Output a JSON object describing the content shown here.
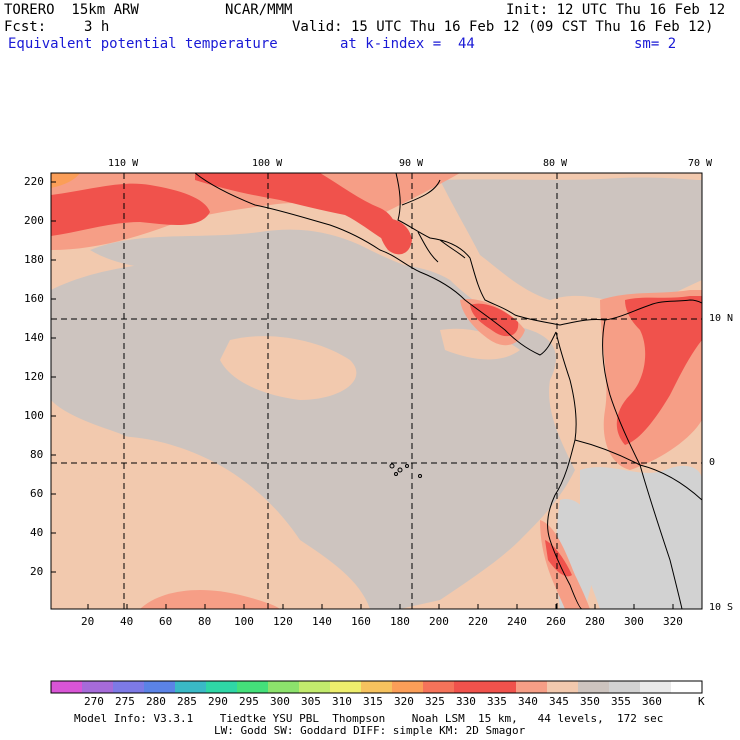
{
  "header": {
    "model": "TORERO  15km ARW",
    "center": "NCAR/MMM",
    "init": "Init: 12 UTC Thu 16 Feb 12",
    "fcst_label": "Fcst:",
    "fcst_value": "3 h",
    "valid": "Valid: 15 UTC Thu 16 Feb 12 (09 CST Thu 16 Feb 12)",
    "field": "Equivalent potential temperature",
    "level": "at k-index =  44",
    "smoothing": "sm= 2"
  },
  "map": {
    "x_ticks": [
      "20",
      "40",
      "60",
      "80",
      "100",
      "120",
      "140",
      "160",
      "180",
      "200",
      "220",
      "240",
      "260",
      "280",
      "300",
      "320"
    ],
    "y_ticks": [
      "20",
      "40",
      "60",
      "80",
      "100",
      "120",
      "140",
      "160",
      "180",
      "200",
      "220"
    ],
    "lon_labels": [
      "110 W",
      "100 W",
      "90 W",
      "80 W",
      "70 W"
    ],
    "lat_labels": [
      "10 N",
      "0",
      "10 S"
    ],
    "colors": {
      "ocean_base": "#f2c9ae",
      "land_gray": "#cdc4bf",
      "warm": "#f69e86",
      "hot": "#f0524c",
      "very_hot": "#fb9e58",
      "gray_light": "#d2d2d2"
    }
  },
  "colorbar": {
    "labels": [
      "270",
      "275",
      "280",
      "285",
      "290",
      "295",
      "300",
      "305",
      "310",
      "315",
      "320",
      "325",
      "330",
      "335",
      "340",
      "345",
      "350",
      "355",
      "360"
    ],
    "unit": "K",
    "colors": [
      "#d955d6",
      "#a66bd9",
      "#7d7ae6",
      "#5b83e6",
      "#3ab9c6",
      "#2fd6a6",
      "#44e07a",
      "#8ce26c",
      "#c2eb6d",
      "#eeee6d",
      "#f6c25e",
      "#fb9e58",
      "#f5735a",
      "#f0524c",
      "#f0524c",
      "#f69e86",
      "#f2c9ae",
      "#cdc4bf",
      "#d2d2d2",
      "#eaeaea",
      "#ffffff"
    ]
  },
  "footer": {
    "line1": "Model Info: V3.3.1    Tiedtke YSU PBL  Thompson    Noah LSM  15 km,   44 levels,  172 sec",
    "line2": "LW: Godd SW: Goddard DIFF: simple KM: 2D Smagor"
  }
}
